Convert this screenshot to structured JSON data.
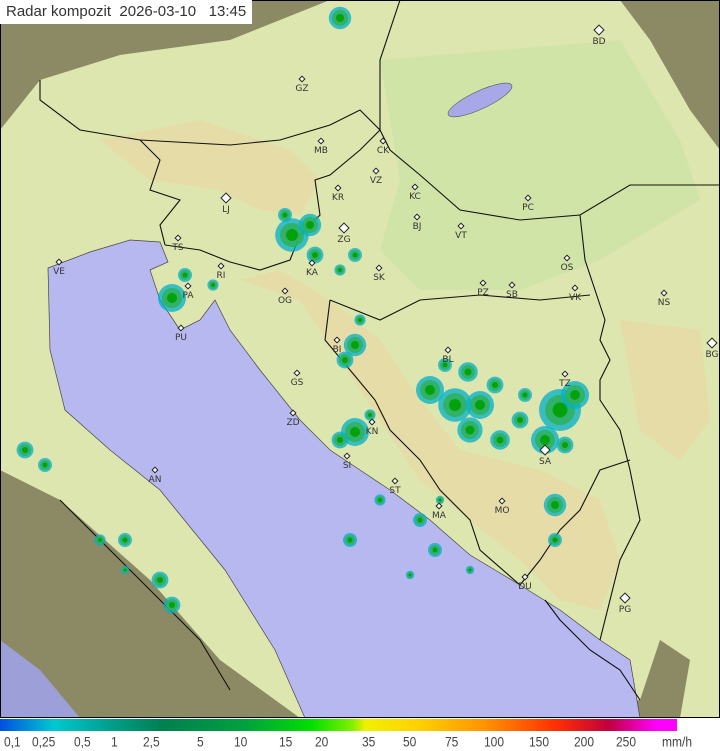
{
  "header": {
    "title": "Radar kompozit",
    "date": "2026-03-10",
    "time": "13:45"
  },
  "legend": {
    "unit": "mm/h",
    "values": [
      "0,1",
      "0,25",
      "0,5",
      "1",
      "2,5",
      "5",
      "10",
      "15",
      "20",
      "35",
      "50",
      "75",
      "100",
      "150",
      "200",
      "250"
    ]
  },
  "colors": {
    "sea": "#b8b8f0",
    "land": "#dde6ae",
    "outside": "#8c8a64",
    "border": "#111111",
    "rain_light": "#00b0c8",
    "rain_mid": "#30b060",
    "rain_heavy": "#00a000"
  },
  "cities": [
    {
      "code": "GZ",
      "capital": false
    },
    {
      "code": "MB",
      "capital": false
    },
    {
      "code": "CK",
      "capital": false
    },
    {
      "code": "VZ",
      "capital": false
    },
    {
      "code": "KR",
      "capital": false
    },
    {
      "code": "KC",
      "capital": false
    },
    {
      "code": "LJ",
      "capital": true
    },
    {
      "code": "BD",
      "capital": true
    },
    {
      "code": "PC",
      "capital": false
    },
    {
      "code": "BJ",
      "capital": false
    },
    {
      "code": "ZG",
      "capital": true
    },
    {
      "code": "TS",
      "capital": false
    },
    {
      "code": "VT",
      "capital": false
    },
    {
      "code": "VE",
      "capital": false
    },
    {
      "code": "RI",
      "capital": false
    },
    {
      "code": "KA",
      "capital": false
    },
    {
      "code": "SK",
      "capital": false
    },
    {
      "code": "OS",
      "capital": false
    },
    {
      "code": "NS",
      "capital": false
    },
    {
      "code": "PZ",
      "capital": false
    },
    {
      "code": "SB",
      "capital": false
    },
    {
      "code": "VK",
      "capital": false
    },
    {
      "code": "OG",
      "capital": false
    },
    {
      "code": "PA",
      "capital": false
    },
    {
      "code": "PU",
      "capital": false
    },
    {
      "code": "BL",
      "capital": false
    },
    {
      "code": "BI",
      "capital": false
    },
    {
      "code": "BG",
      "capital": true
    },
    {
      "code": "GS",
      "capital": false
    },
    {
      "code": "TZ",
      "capital": false
    },
    {
      "code": "ZD",
      "capital": false
    },
    {
      "code": "KN",
      "capital": false
    },
    {
      "code": "SA",
      "capital": true
    },
    {
      "code": "SI",
      "capital": false
    },
    {
      "code": "AN",
      "capital": false
    },
    {
      "code": "ST",
      "capital": false
    },
    {
      "code": "MA",
      "capital": false
    },
    {
      "code": "MO",
      "capital": false
    },
    {
      "code": "DU",
      "capital": false
    },
    {
      "code": "PG",
      "capital": true
    }
  ]
}
